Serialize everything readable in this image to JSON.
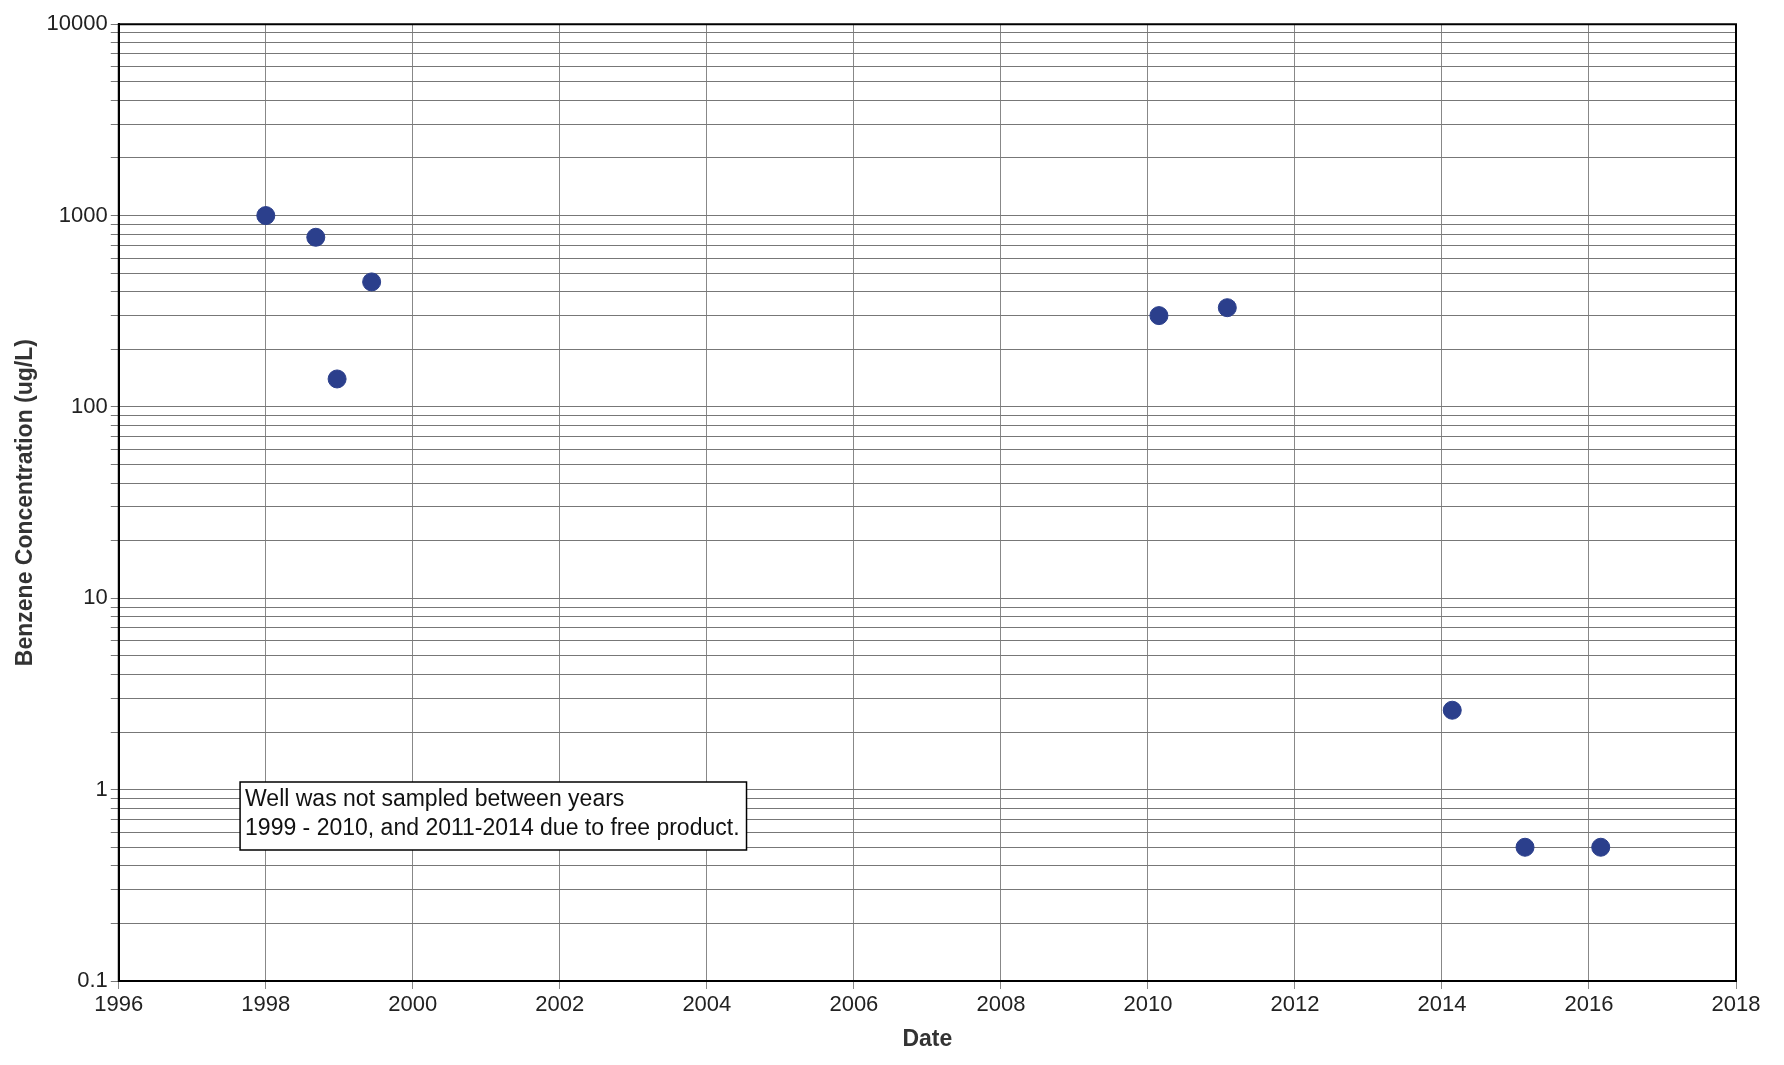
{
  "chart_data": {
    "type": "scatter",
    "xlabel": "Date",
    "ylabel": "Benzene Concentration (ug/L)",
    "x": [
      1998.0,
      1998.68,
      1998.97,
      1999.44,
      2010.15,
      2011.08,
      2014.14,
      2015.13,
      2016.16
    ],
    "series": [
      {
        "color": "#2b3f8c",
        "values": [
          1000,
          770,
          140,
          450,
          300,
          330,
          2.6,
          0.5,
          0.5
        ]
      }
    ],
    "xlim": [
      1996,
      2018
    ],
    "xticks": [
      1996,
      1998,
      2000,
      2002,
      2004,
      2006,
      2008,
      2010,
      2012,
      2014,
      2016,
      2018
    ],
    "ylim": [
      0.1,
      10000
    ],
    "yticks": [
      0.1,
      {
        "value": 0.2,
        "label": null
      },
      {
        "value": 0.3,
        "label": null
      },
      {
        "value": 0.4,
        "label": null
      },
      {
        "value": 0.5,
        "label": null
      },
      {
        "value": 0.6,
        "label": null
      },
      {
        "value": 0.7,
        "label": null
      },
      {
        "value": 0.8,
        "label": null
      },
      {
        "value": 0.9,
        "label": null
      },
      1,
      {
        "value": 2,
        "label": null
      },
      {
        "value": 3,
        "label": null
      },
      {
        "value": 4,
        "label": null
      },
      {
        "value": 5,
        "label": null
      },
      {
        "value": 6,
        "label": null
      },
      {
        "value": 7,
        "label": null
      },
      {
        "value": 8,
        "label": null
      },
      {
        "value": 9,
        "label": null
      },
      10,
      {
        "value": 20,
        "label": null
      },
      {
        "value": 30,
        "label": null
      },
      {
        "value": 40,
        "label": null
      },
      {
        "value": 50,
        "label": null
      },
      {
        "value": 60,
        "label": null
      },
      {
        "value": 70,
        "label": null
      },
      {
        "value": 80,
        "label": null
      },
      {
        "value": 90,
        "label": null
      },
      100,
      {
        "value": 200,
        "label": null
      },
      {
        "value": 300,
        "label": null
      },
      {
        "value": 400,
        "label": null
      },
      {
        "value": 500,
        "label": null
      },
      {
        "value": 600,
        "label": null
      },
      {
        "value": 700,
        "label": null
      },
      {
        "value": 800,
        "label": null
      },
      {
        "value": 900,
        "label": null
      },
      1000,
      {
        "value": 2000,
        "label": null
      },
      {
        "value": 3000,
        "label": null
      },
      {
        "value": 4000,
        "label": null
      },
      {
        "value": 5000,
        "label": null
      },
      {
        "value": 6000,
        "label": null
      },
      {
        "value": 7000,
        "label": null
      },
      {
        "value": 8000,
        "label": null
      },
      {
        "value": 9000,
        "label": null
      },
      10000
    ],
    "log": true,
    "grid": true,
    "legend": false,
    "marker": "circle",
    "annotations": [
      "Well was not sampled between years\n1999 - 2010, and 2011-2014 due to free product."
    ]
  }
}
